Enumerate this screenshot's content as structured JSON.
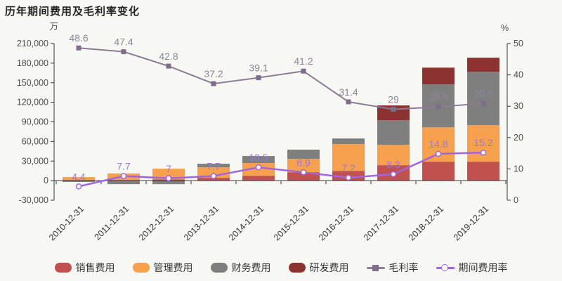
{
  "chart": {
    "title": "历年期间费用及毛利率变化",
    "left_axis_unit": "万",
    "right_axis_unit": "%",
    "background_color": "#f7f7f4",
    "axis_color": "#333333",
    "tick_label_color": "#4d4d4d"
  },
  "chart_data": {
    "type": "bar",
    "subtype": "stacked-bar-with-lines",
    "title": "历年期间费用及毛利率变化",
    "categories": [
      "2010-12-31",
      "2011-12-31",
      "2012-12-31",
      "2013-12-31",
      "2014-12-31",
      "2015-12-31",
      "2016-12-31",
      "2017-12-31",
      "2018-12-31",
      "2019-12-31"
    ],
    "bar_series": [
      {
        "key": "sales-expense",
        "name": "销售费用",
        "color": "#c1514e",
        "values": [
          500,
          1000,
          2000,
          4300,
          7500,
          12900,
          15000,
          23700,
          29000,
          29000
        ]
      },
      {
        "key": "admin-expense",
        "name": "管理费用",
        "color": "#f7a04d",
        "values": [
          4900,
          10000,
          16300,
          16100,
          19400,
          20400,
          41000,
          31200,
          52700,
          56000
        ]
      },
      {
        "key": "finance-expense",
        "name": "财务费用",
        "color": "#7f7f7f",
        "values": [
          -2000,
          -5400,
          -5400,
          5400,
          10800,
          14100,
          8600,
          37700,
          65600,
          81800
        ]
      },
      {
        "key": "rd-expense",
        "name": "研发费用",
        "color": "#8c3231",
        "values": [
          0,
          0,
          0,
          0,
          0,
          0,
          0,
          22600,
          25800,
          21500
        ]
      }
    ],
    "line_series": [
      {
        "key": "gross-margin",
        "name": "毛利率",
        "color": "#8d7b96",
        "marker": "square",
        "marker_color": "#7e6e89",
        "label_color": "#8f8498",
        "axis": "right",
        "values": [
          48.6,
          47.4,
          42.8,
          37.2,
          39.1,
          41.2,
          31.4,
          29,
          29.8,
          30.9
        ]
      },
      {
        "key": "expense-ratio",
        "name": "期间费用率",
        "color": "#a265dd",
        "marker": "circle",
        "marker_color": "#ffffff",
        "label_color": "#9b78e0",
        "axis": "right",
        "values": [
          4.4,
          7.7,
          7,
          7.7,
          10.5,
          8.9,
          7.2,
          8.3,
          14.8,
          15.2
        ]
      }
    ],
    "left_axis": {
      "unit": "万",
      "min": -30000,
      "max": 210000,
      "tick_step": 30000,
      "tick_labels": [
        "-30,000",
        "0",
        "30,000",
        "60,000",
        "90,000",
        "120,000",
        "150,000",
        "180,000",
        "210,000"
      ]
    },
    "right_axis": {
      "unit": "%",
      "min": 0,
      "max": 50,
      "tick_step": 10,
      "tick_labels": [
        "0",
        "10",
        "20",
        "30",
        "40",
        "50"
      ]
    },
    "xlabel": "",
    "ylabel": "万",
    "grid": false,
    "legend_position": "bottom",
    "legend_entries": [
      "销售费用",
      "管理费用",
      "财务费用",
      "研发费用",
      "毛利率",
      "期间费用率"
    ]
  }
}
